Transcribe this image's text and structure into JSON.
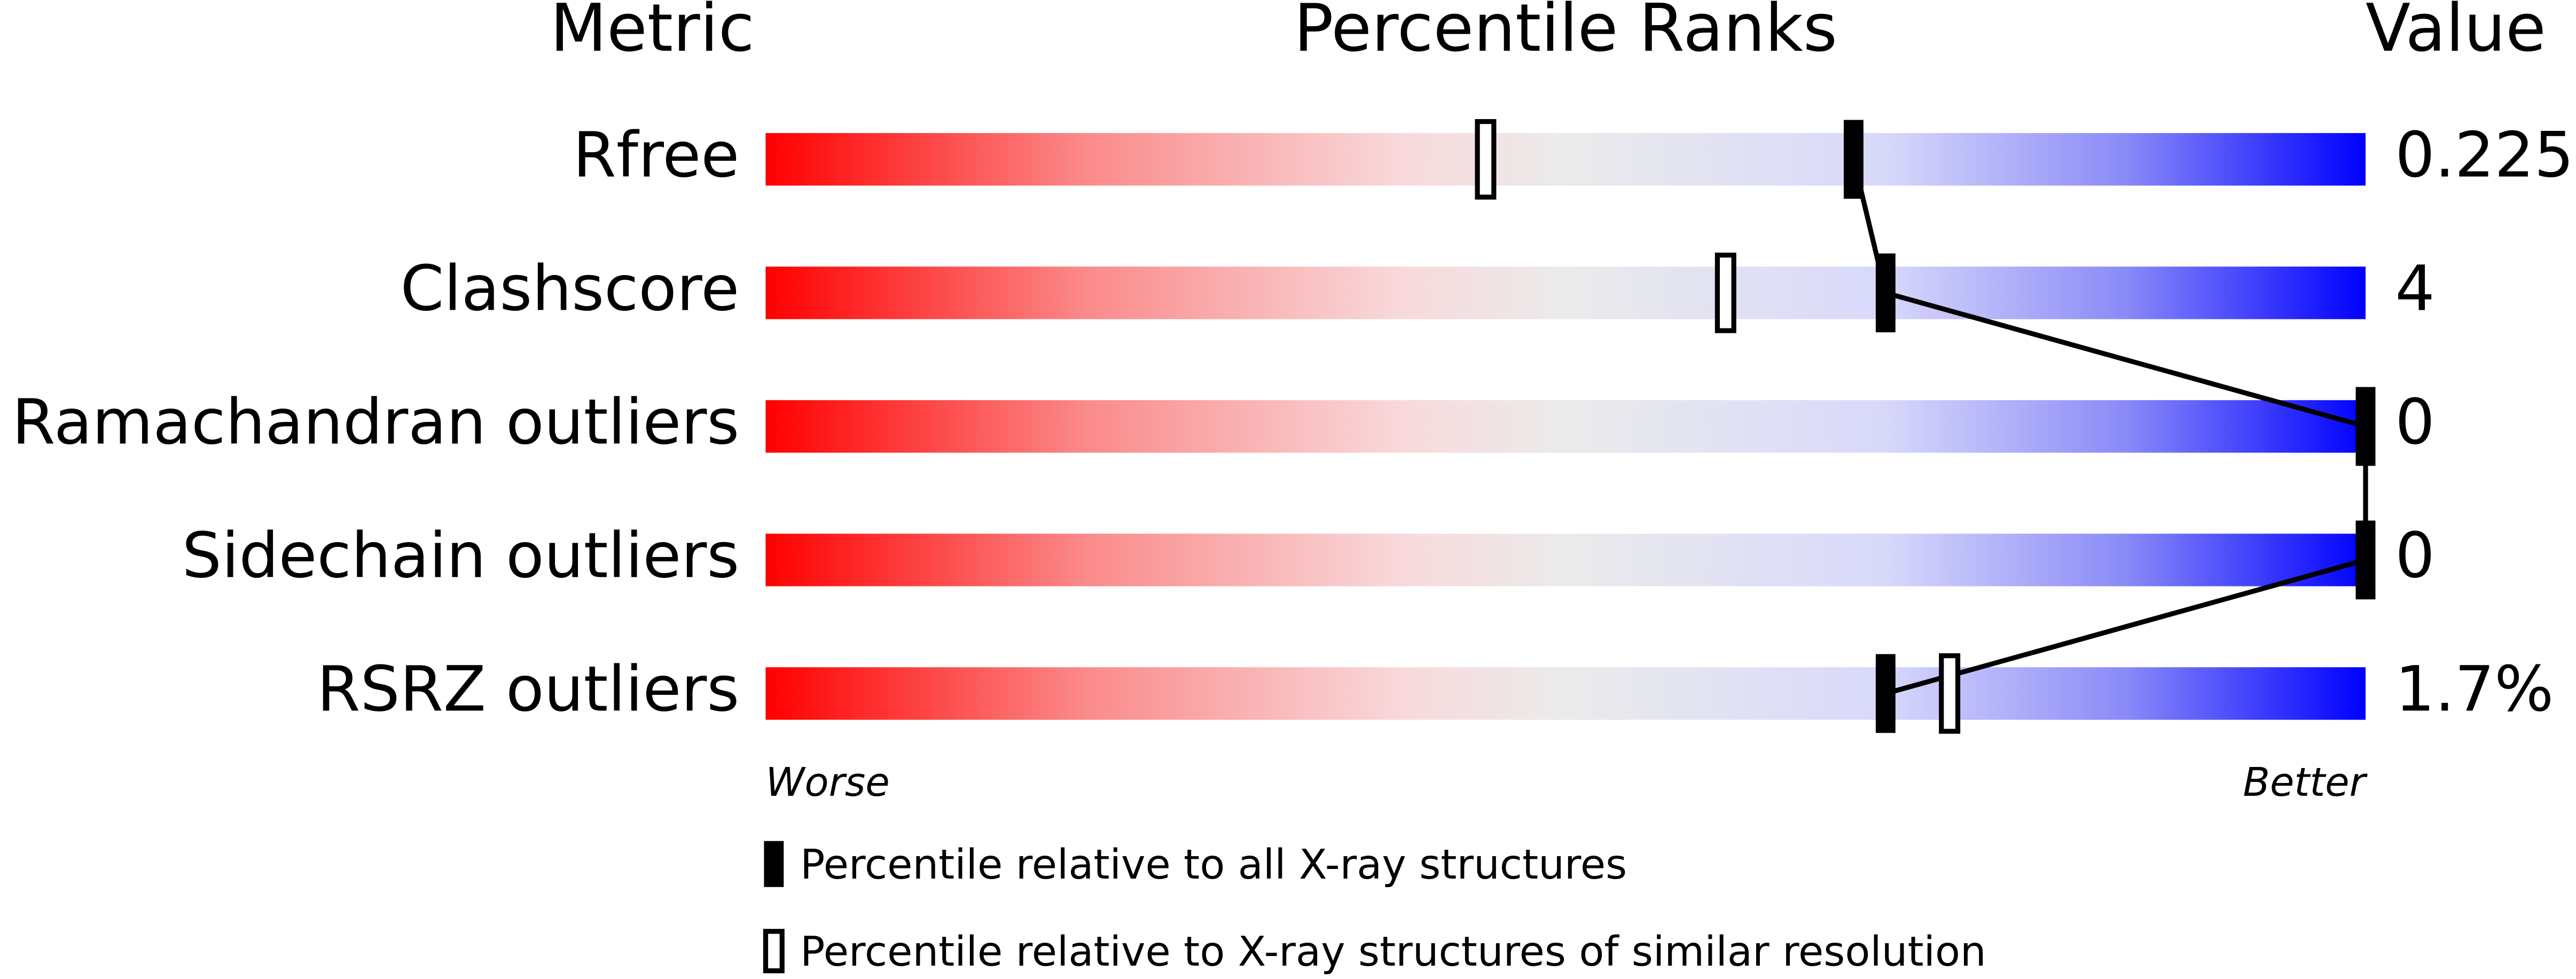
{
  "chart_data": {
    "type": "percentile",
    "headers": {
      "metric": "Metric",
      "percentile": "Percentile Ranks",
      "value": "Value"
    },
    "categories": [
      "Rfree",
      "Clashscore",
      "Ramachandran outliers",
      "Sidechain outliers",
      "RSRZ outliers"
    ],
    "value_labels": [
      "0.225",
      "4",
      "0",
      "0",
      "1.7%"
    ],
    "xlim": [
      0,
      100
    ],
    "axis_labels": {
      "low": "Worse",
      "high": "Better"
    },
    "series": [
      {
        "name": "Percentile relative to all X-ray structures",
        "color": "#000000",
        "style": "filled",
        "values": [
          68,
          70,
          100,
          100,
          70
        ]
      },
      {
        "name": "Percentile relative to X-ray structures of similar resolution",
        "color": "#000000",
        "style": "hollow",
        "values": [
          45,
          60,
          null,
          null,
          74
        ]
      }
    ]
  }
}
